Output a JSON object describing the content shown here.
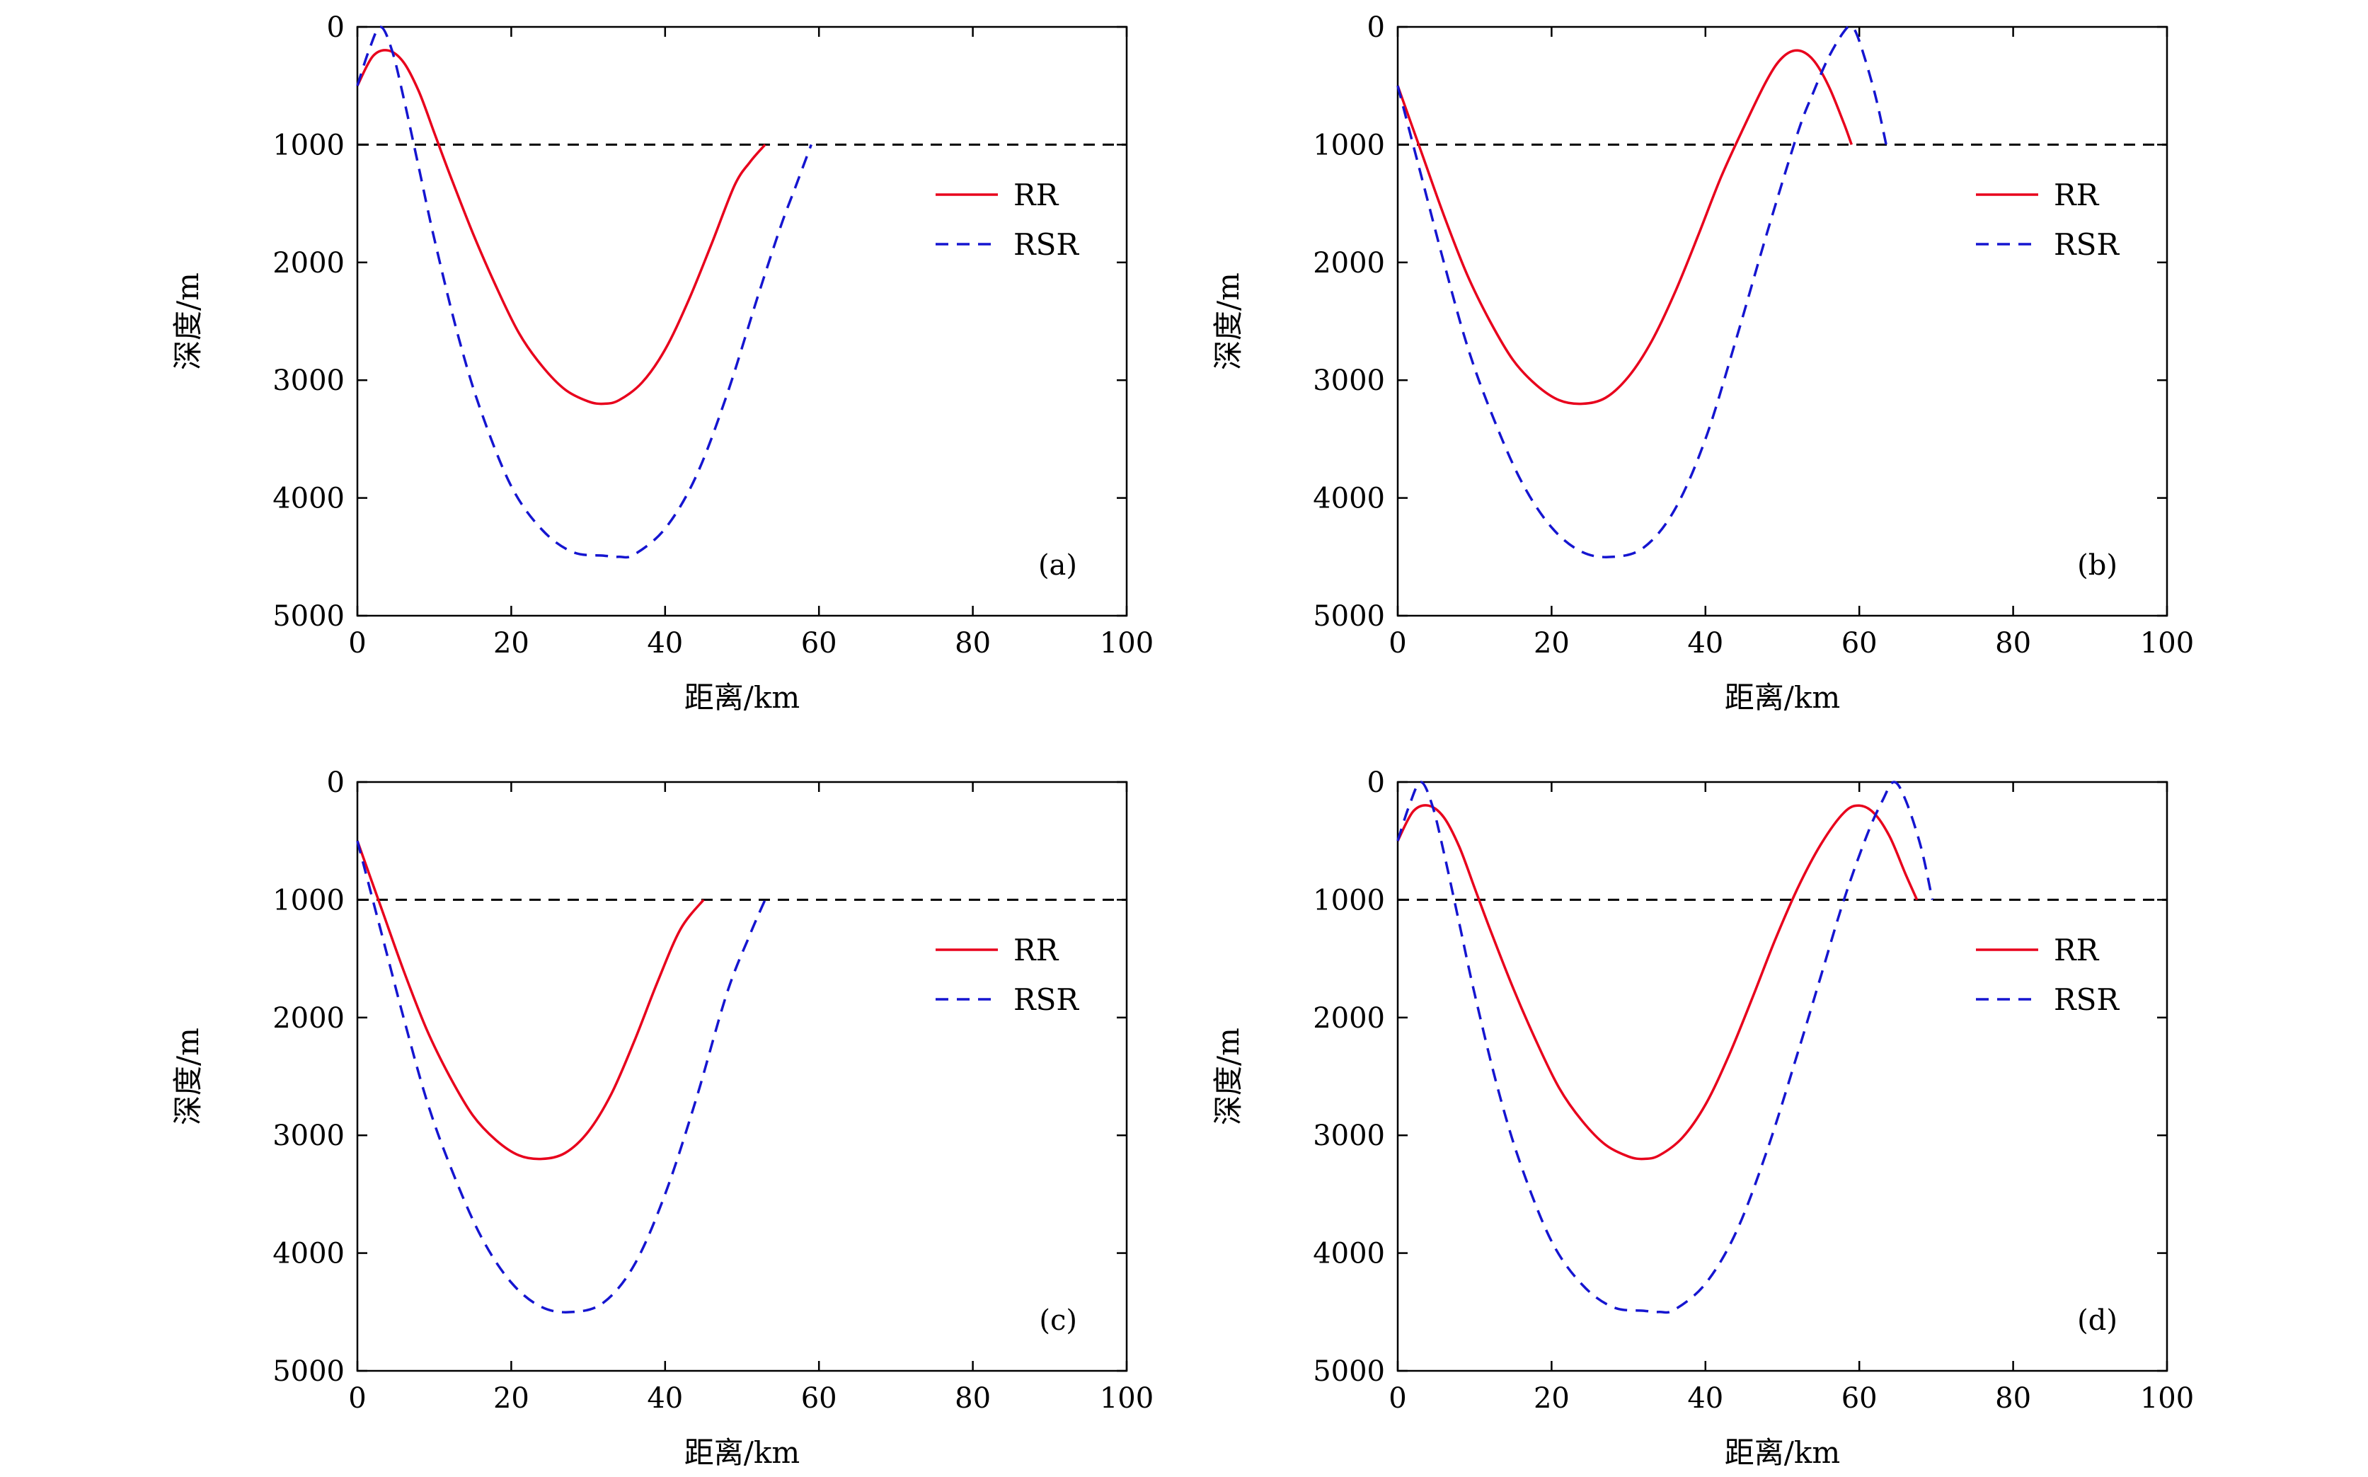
{
  "colors": {
    "RR": "#e8001c",
    "RSR": "#1515d0",
    "threshold": "#000000"
  },
  "chart_data": [
    {
      "type": "line",
      "panel_label": "(a)",
      "xlabel": "距离/km",
      "ylabel": "深度/m",
      "xlim": [
        0,
        100
      ],
      "ylim": [
        0,
        5000
      ],
      "y_inverted": true,
      "grid": false,
      "legend_position": "right",
      "xticks": [
        "0",
        "20",
        "40",
        "60",
        "80",
        "100"
      ],
      "yticks": [
        "0",
        "1000",
        "2000",
        "3000",
        "4000",
        "5000"
      ],
      "reference_line": {
        "y": 1000,
        "style": "dashed"
      },
      "series": [
        {
          "name": "RR",
          "style": "solid",
          "x": [
            0,
            2,
            4,
            6,
            8,
            10,
            12,
            15,
            18,
            21,
            24,
            27,
            30,
            32,
            34,
            37,
            40,
            43,
            46,
            49,
            51,
            53
          ],
          "y": [
            500,
            250,
            200,
            300,
            550,
            900,
            1250,
            1750,
            2200,
            2600,
            2880,
            3080,
            3180,
            3200,
            3170,
            3020,
            2740,
            2330,
            1850,
            1350,
            1150,
            1000
          ]
        },
        {
          "name": "RSR",
          "style": "dashed",
          "x": [
            0,
            1.5,
            3,
            4.5,
            6,
            8,
            10,
            13,
            16,
            20,
            24,
            28,
            32,
            34,
            36,
            40,
            44,
            48,
            52,
            55,
            57,
            59
          ],
          "y": [
            500,
            200,
            0,
            200,
            600,
            1200,
            1800,
            2600,
            3250,
            3900,
            4270,
            4460,
            4490,
            4500,
            4480,
            4260,
            3820,
            3130,
            2300,
            1700,
            1350,
            1000
          ]
        }
      ]
    },
    {
      "type": "line",
      "panel_label": "(b)",
      "xlabel": "距离/km",
      "ylabel": "深度/m",
      "xlim": [
        0,
        100
      ],
      "ylim": [
        0,
        5000
      ],
      "y_inverted": true,
      "grid": false,
      "legend_position": "right",
      "xticks": [
        "0",
        "20",
        "40",
        "60",
        "80",
        "100"
      ],
      "yticks": [
        "0",
        "1000",
        "2000",
        "3000",
        "4000",
        "5000"
      ],
      "reference_line": {
        "y": 1000,
        "style": "dashed"
      },
      "series": [
        {
          "name": "RR",
          "style": "solid",
          "x": [
            0,
            3,
            6,
            9,
            12,
            15,
            18,
            21,
            24,
            27,
            30,
            33,
            36,
            39,
            42,
            45,
            48,
            50,
            52,
            54,
            56,
            58,
            59
          ],
          "y": [
            500,
            1050,
            1600,
            2100,
            2500,
            2830,
            3040,
            3170,
            3200,
            3150,
            2970,
            2670,
            2260,
            1780,
            1280,
            850,
            450,
            260,
            200,
            280,
            500,
            820,
            1000
          ]
        },
        {
          "name": "RSR",
          "style": "dashed",
          "x": [
            0,
            3,
            6,
            9,
            12,
            16,
            20,
            24,
            28,
            32,
            36,
            40,
            44,
            48,
            52,
            54,
            56,
            58,
            59,
            60,
            62,
            63.5
          ],
          "y": [
            500,
            1250,
            2000,
            2700,
            3250,
            3850,
            4250,
            4460,
            4500,
            4420,
            4100,
            3500,
            2650,
            1750,
            900,
            560,
            260,
            40,
            0,
            120,
            560,
            1000
          ]
        }
      ]
    },
    {
      "type": "line",
      "panel_label": "(c)",
      "xlabel": "距离/km",
      "ylabel": "深度/m",
      "xlim": [
        0,
        100
      ],
      "ylim": [
        0,
        5000
      ],
      "y_inverted": true,
      "grid": false,
      "legend_position": "right",
      "xticks": [
        "0",
        "20",
        "40",
        "60",
        "80",
        "100"
      ],
      "yticks": [
        "0",
        "1000",
        "2000",
        "3000",
        "4000",
        "5000"
      ],
      "reference_line": {
        "y": 1000,
        "style": "dashed"
      },
      "series": [
        {
          "name": "RR",
          "style": "solid",
          "x": [
            0,
            3,
            6,
            9,
            12,
            15,
            18,
            21,
            24,
            27,
            30,
            33,
            36,
            39,
            42,
            45
          ],
          "y": [
            500,
            1050,
            1600,
            2100,
            2500,
            2830,
            3040,
            3170,
            3200,
            3150,
            2970,
            2650,
            2200,
            1700,
            1250,
            1000
          ]
        },
        {
          "name": "RSR",
          "style": "dashed",
          "x": [
            0,
            3,
            6,
            9,
            12,
            16,
            20,
            24,
            28,
            32,
            36,
            40,
            44,
            48,
            51,
            53
          ],
          "y": [
            500,
            1250,
            2000,
            2700,
            3250,
            3850,
            4250,
            4460,
            4500,
            4420,
            4100,
            3500,
            2700,
            1800,
            1300,
            1000
          ]
        }
      ]
    },
    {
      "type": "line",
      "panel_label": "(d)",
      "xlabel": "距离/km",
      "ylabel": "深度/m",
      "xlim": [
        0,
        100
      ],
      "ylim": [
        0,
        5000
      ],
      "y_inverted": true,
      "grid": false,
      "legend_position": "right",
      "xticks": [
        "0",
        "20",
        "40",
        "60",
        "80",
        "100"
      ],
      "yticks": [
        "0",
        "1000",
        "2000",
        "3000",
        "4000",
        "5000"
      ],
      "reference_line": {
        "y": 1000,
        "style": "dashed"
      },
      "series": [
        {
          "name": "RR",
          "style": "solid",
          "x": [
            0,
            2,
            4,
            6,
            8,
            10,
            12,
            15,
            18,
            21,
            24,
            27,
            30,
            32,
            34,
            37,
            40,
            43,
            46,
            49,
            52,
            55,
            58,
            60,
            62,
            64,
            66,
            67.5
          ],
          "y": [
            500,
            250,
            200,
            300,
            550,
            900,
            1250,
            1750,
            2200,
            2600,
            2880,
            3080,
            3180,
            3200,
            3170,
            3020,
            2740,
            2330,
            1850,
            1350,
            900,
            530,
            260,
            200,
            270,
            470,
            780,
            1000
          ]
        },
        {
          "name": "RSR",
          "style": "dashed",
          "x": [
            0,
            1.5,
            3,
            4.5,
            6,
            8,
            10,
            13,
            16,
            20,
            24,
            28,
            32,
            34,
            36,
            40,
            44,
            48,
            52,
            55,
            58,
            61,
            63,
            64.5,
            66,
            68,
            69.5
          ],
          "y": [
            500,
            200,
            0,
            200,
            600,
            1200,
            1800,
            2600,
            3250,
            3900,
            4270,
            4460,
            4490,
            4500,
            4480,
            4260,
            3820,
            3130,
            2300,
            1650,
            1000,
            450,
            160,
            0,
            150,
            550,
            1000
          ]
        }
      ]
    }
  ]
}
